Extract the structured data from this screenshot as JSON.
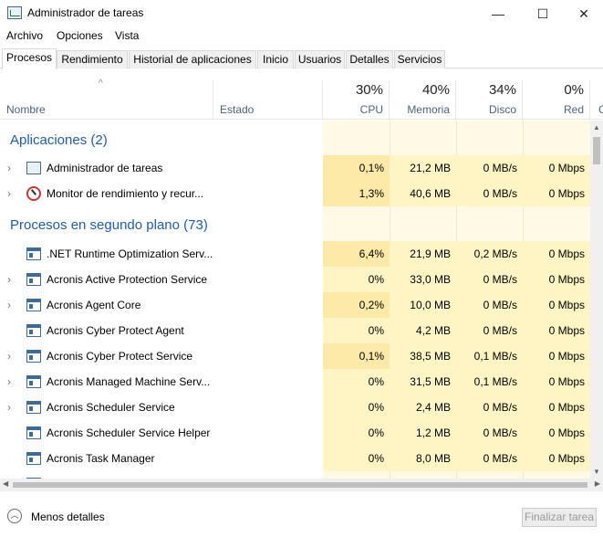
{
  "window": {
    "title": "Administrador de tareas",
    "minimize": "—",
    "maximize": "☐",
    "close": "✕"
  },
  "menu": [
    "Archivo",
    "Opciones",
    "Vista"
  ],
  "tabs": [
    "Procesos",
    "Rendimiento",
    "Historial de aplicaciones",
    "Inicio",
    "Usuarios",
    "Detalles",
    "Servicios"
  ],
  "active_tab": "Procesos",
  "columns": {
    "name": "Nombre",
    "status": "Estado",
    "cpu": {
      "pct": "30%",
      "label": "CPU"
    },
    "memory": {
      "pct": "40%",
      "label": "Memoria"
    },
    "disk": {
      "pct": "34%",
      "label": "Disco"
    },
    "network": {
      "pct": "0%",
      "label": "Red"
    },
    "partial_next": "C",
    "sort_indicator": "^"
  },
  "groups": {
    "apps": "Aplicaciones (2)",
    "background": "Procesos en segundo plano (73)"
  },
  "apps": [
    {
      "name": "Administrador de tareas",
      "cpu": "0,1%",
      "memory": "21,2 MB",
      "disk": "0 MB/s",
      "network": "0 Mbps",
      "expandable": true,
      "icon": "task-manager-icon"
    },
    {
      "name": "Monitor de rendimiento y recur...",
      "cpu": "1,3%",
      "memory": "40,6 MB",
      "disk": "0 MB/s",
      "network": "0 Mbps",
      "expandable": true,
      "icon": "resource-monitor-icon"
    }
  ],
  "background": [
    {
      "name": ".NET Runtime Optimization Serv...",
      "cpu": "6,4%",
      "memory": "21,9 MB",
      "disk": "0,2 MB/s",
      "network": "0 Mbps",
      "expandable": false
    },
    {
      "name": "Acronis Active Protection Service",
      "cpu": "0%",
      "memory": "33,0 MB",
      "disk": "0 MB/s",
      "network": "0 Mbps",
      "expandable": true
    },
    {
      "name": "Acronis Agent Core",
      "cpu": "0,2%",
      "memory": "10,0 MB",
      "disk": "0 MB/s",
      "network": "0 Mbps",
      "expandable": true
    },
    {
      "name": "Acronis Cyber Protect Agent",
      "cpu": "0%",
      "memory": "4,2 MB",
      "disk": "0 MB/s",
      "network": "0 Mbps",
      "expandable": false
    },
    {
      "name": "Acronis Cyber Protect Service",
      "cpu": "0,1%",
      "memory": "38,5 MB",
      "disk": "0,1 MB/s",
      "network": "0 Mbps",
      "expandable": true
    },
    {
      "name": "Acronis Managed Machine Serv...",
      "cpu": "0%",
      "memory": "31,5 MB",
      "disk": "0,1 MB/s",
      "network": "0 Mbps",
      "expandable": true
    },
    {
      "name": "Acronis Scheduler Service",
      "cpu": "0%",
      "memory": "2,4 MB",
      "disk": "0 MB/s",
      "network": "0 Mbps",
      "expandable": true
    },
    {
      "name": "Acronis Scheduler Service Helper",
      "cpu": "0%",
      "memory": "1,2 MB",
      "disk": "0 MB/s",
      "network": "0 Mbps",
      "expandable": false
    },
    {
      "name": "Acronis Task Manager",
      "cpu": "0%",
      "memory": "8,0 MB",
      "disk": "0 MB/s",
      "network": "0 Mbps",
      "expandable": false
    }
  ],
  "footer": {
    "less_details": "Menos detalles",
    "end_task": "Finalizar tarea"
  },
  "colors": {
    "group_heading": "#1f5cab",
    "heat_light": "#fff4c4",
    "heat_medium": "#fde9a8",
    "heat_empty": "#fff9e5"
  }
}
